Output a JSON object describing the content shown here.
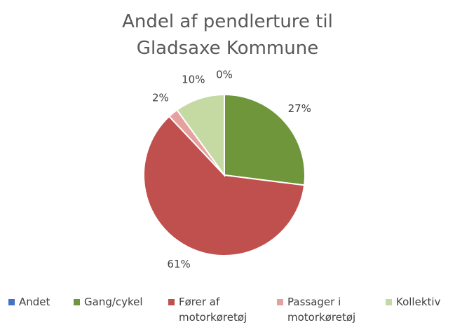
{
  "chart_data": {
    "type": "pie",
    "title": "Andel af pendlerture til Gladsaxe Kommune",
    "categories": [
      "Andet",
      "Gang/cykel",
      "Fører af motorkøretøj",
      "Passager i motorkøretøj",
      "Kollektiv"
    ],
    "values": [
      0,
      27,
      61,
      2,
      10
    ],
    "value_labels": [
      "0%",
      "27%",
      "61%",
      "2%",
      "10%"
    ],
    "colors": [
      "#4472c4",
      "#70963c",
      "#c0504d",
      "#e6a19f",
      "#c5d9a2"
    ],
    "legend": "bottom"
  }
}
